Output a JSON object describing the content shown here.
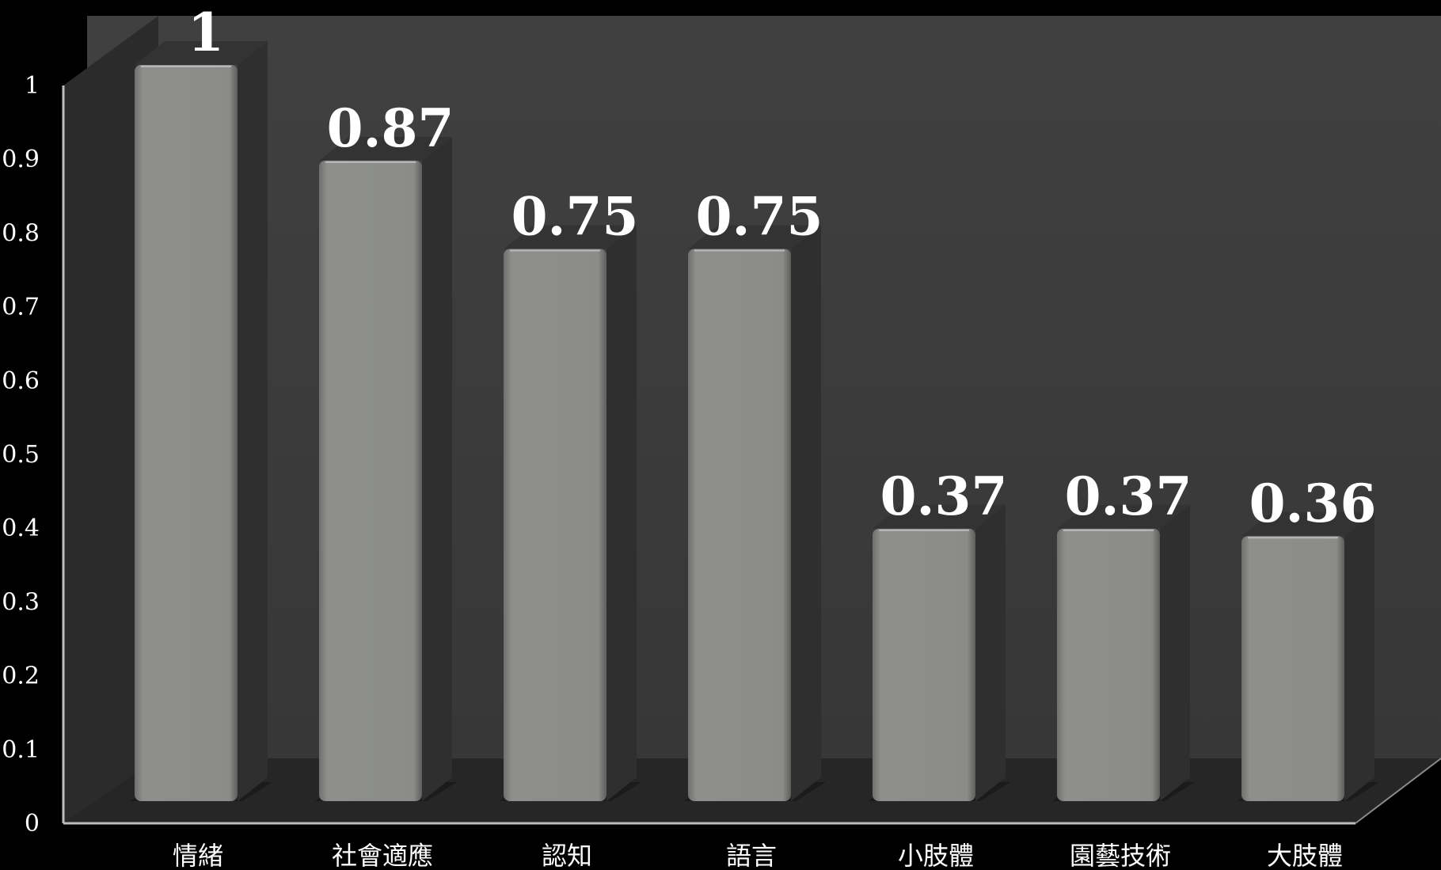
{
  "chart_data": {
    "type": "bar",
    "categories": [
      "情緒",
      "社會適應",
      "認知",
      "語言",
      "小肢體",
      "園藝技術",
      "大肢體"
    ],
    "values": [
      1,
      0.87,
      0.75,
      0.75,
      0.37,
      0.37,
      0.36
    ],
    "data_labels": [
      "1",
      "0.87",
      "0.75",
      "0.75",
      "0.37",
      "0.37",
      "0.36"
    ],
    "ylim": [
      0,
      1
    ],
    "yticks": [
      "0",
      "0.1",
      "0.2",
      "0.3",
      "0.4",
      "0.5",
      "0.6",
      "0.7",
      "0.8",
      "0.9",
      "1"
    ],
    "title": "",
    "xlabel": "",
    "ylabel": "",
    "grid": false,
    "legend": "none",
    "style": "3d-column"
  },
  "colors": {
    "background": "#000000",
    "back_wall": "#3b3b3b",
    "side_wall": "#2b2b2b",
    "floor": "#262626",
    "bar_front": "#8c8d8b",
    "bar_side": "#2f2f2f",
    "bar_top": "#333333",
    "text": "#ffffff"
  }
}
